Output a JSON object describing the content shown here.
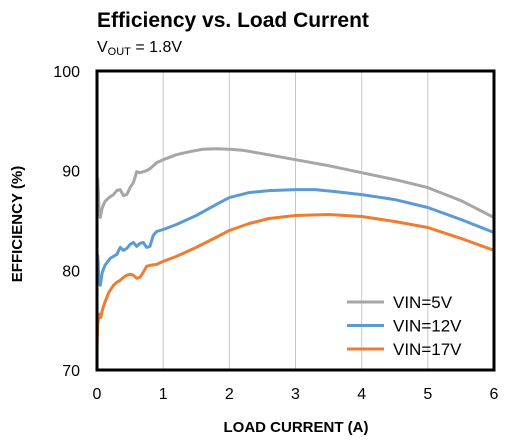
{
  "chart_data": {
    "type": "line",
    "title": "Efficiency vs. Load Current",
    "subtitle": {
      "prefix": "V",
      "subscript": "OUT",
      "rest": " = 1.8V"
    },
    "xlabel": "LOAD CURRENT  (A)",
    "ylabel": "EFFICIENCY  (%)",
    "xlim": [
      0,
      6
    ],
    "ylim": [
      70,
      100
    ],
    "xticks": [
      0,
      1,
      2,
      3,
      4,
      5,
      6
    ],
    "yticks": [
      70,
      80,
      90,
      100
    ],
    "grid": "vertical",
    "legend_position": "bottom-right",
    "series": [
      {
        "name": "VIN=5V",
        "color": "#a6a6a6",
        "points": [
          [
            0.0,
            87.5
          ],
          [
            0.01,
            89.2
          ],
          [
            0.02,
            88.0
          ],
          [
            0.03,
            86.0
          ],
          [
            0.05,
            85.3
          ],
          [
            0.08,
            86.3
          ],
          [
            0.12,
            86.9
          ],
          [
            0.18,
            87.3
          ],
          [
            0.25,
            87.6
          ],
          [
            0.3,
            88.0
          ],
          [
            0.35,
            88.1
          ],
          [
            0.4,
            87.5
          ],
          [
            0.45,
            87.6
          ],
          [
            0.5,
            88.3
          ],
          [
            0.55,
            88.8
          ],
          [
            0.6,
            89.9
          ],
          [
            0.65,
            89.8
          ],
          [
            0.7,
            89.9
          ],
          [
            0.75,
            90.0
          ],
          [
            0.8,
            90.2
          ],
          [
            0.9,
            90.8
          ],
          [
            1.0,
            91.1
          ],
          [
            1.2,
            91.6
          ],
          [
            1.4,
            91.9
          ],
          [
            1.6,
            92.15
          ],
          [
            1.8,
            92.2
          ],
          [
            2.0,
            92.15
          ],
          [
            2.2,
            92.05
          ],
          [
            2.5,
            91.7
          ],
          [
            3.0,
            91.1
          ],
          [
            3.5,
            90.5
          ],
          [
            4.0,
            89.8
          ],
          [
            4.5,
            89.1
          ],
          [
            5.0,
            88.3
          ],
          [
            5.5,
            87.0
          ],
          [
            6.0,
            85.3
          ]
        ]
      },
      {
        "name": "VIN=12V",
        "color": "#5b9bd5",
        "points": [
          [
            0.0,
            80.0
          ],
          [
            0.01,
            81.5
          ],
          [
            0.02,
            80.5
          ],
          [
            0.03,
            78.8
          ],
          [
            0.05,
            78.5
          ],
          [
            0.08,
            79.8
          ],
          [
            0.12,
            80.5
          ],
          [
            0.2,
            81.2
          ],
          [
            0.3,
            81.6
          ],
          [
            0.35,
            82.3
          ],
          [
            0.4,
            82.0
          ],
          [
            0.45,
            82.2
          ],
          [
            0.5,
            82.6
          ],
          [
            0.55,
            82.8
          ],
          [
            0.6,
            82.4
          ],
          [
            0.65,
            82.7
          ],
          [
            0.7,
            82.8
          ],
          [
            0.75,
            82.3
          ],
          [
            0.8,
            82.4
          ],
          [
            0.85,
            83.5
          ],
          [
            0.9,
            83.9
          ],
          [
            1.0,
            84.1
          ],
          [
            1.2,
            84.6
          ],
          [
            1.5,
            85.5
          ],
          [
            1.8,
            86.6
          ],
          [
            2.0,
            87.3
          ],
          [
            2.3,
            87.8
          ],
          [
            2.6,
            88.0
          ],
          [
            3.0,
            88.1
          ],
          [
            3.3,
            88.1
          ],
          [
            3.6,
            87.9
          ],
          [
            4.0,
            87.6
          ],
          [
            4.5,
            87.1
          ],
          [
            5.0,
            86.3
          ],
          [
            5.5,
            85.1
          ],
          [
            6.0,
            83.8
          ]
        ]
      },
      {
        "name": "VIN=17V",
        "color": "#ed7d31",
        "points": [
          [
            0.0,
            72.0
          ],
          [
            0.01,
            74.5
          ],
          [
            0.02,
            75.0
          ],
          [
            0.04,
            75.6
          ],
          [
            0.06,
            75.3
          ],
          [
            0.08,
            76.0
          ],
          [
            0.12,
            76.8
          ],
          [
            0.18,
            77.8
          ],
          [
            0.25,
            78.5
          ],
          [
            0.3,
            78.8
          ],
          [
            0.35,
            79.0
          ],
          [
            0.4,
            79.3
          ],
          [
            0.45,
            79.5
          ],
          [
            0.5,
            79.6
          ],
          [
            0.55,
            79.5
          ],
          [
            0.6,
            79.2
          ],
          [
            0.65,
            79.3
          ],
          [
            0.7,
            79.8
          ],
          [
            0.75,
            80.4
          ],
          [
            0.8,
            80.5
          ],
          [
            0.9,
            80.6
          ],
          [
            1.0,
            80.9
          ],
          [
            1.2,
            81.4
          ],
          [
            1.5,
            82.3
          ],
          [
            1.8,
            83.3
          ],
          [
            2.0,
            84.0
          ],
          [
            2.3,
            84.7
          ],
          [
            2.6,
            85.2
          ],
          [
            3.0,
            85.5
          ],
          [
            3.5,
            85.6
          ],
          [
            4.0,
            85.4
          ],
          [
            4.5,
            84.9
          ],
          [
            5.0,
            84.3
          ],
          [
            5.5,
            83.2
          ],
          [
            6.0,
            82.0
          ]
        ]
      }
    ]
  }
}
